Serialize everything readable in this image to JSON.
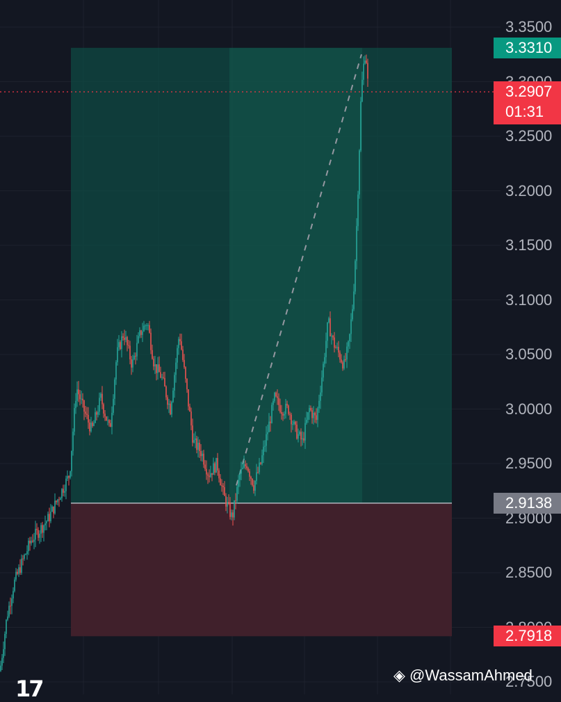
{
  "chart_data": {
    "type": "candlestick",
    "ylim": [
      2.75,
      3.36
    ],
    "y_ticks": [
      "3.3500",
      "3.3000",
      "3.2500",
      "3.2000",
      "3.1500",
      "3.1000",
      "3.0500",
      "3.0000",
      "2.9500",
      "2.9000",
      "2.8500",
      "2.8000",
      "2.7500"
    ],
    "position": {
      "kind": "long",
      "entry": 2.9138,
      "target": 3.331,
      "stop": 2.7918,
      "entry_label": "2.9138",
      "target_label": "3.3310",
      "stop_label": "2.7918"
    },
    "current": {
      "price": 3.2907,
      "price_label": "3.2907",
      "countdown": "01:31"
    },
    "colors": {
      "up": "#26a69a",
      "down": "#ef5350",
      "target_label_bg": "#089981",
      "stop_label_bg": "#f23645",
      "entry_label_bg": "#787b86",
      "profit_zone": "#0f4a43",
      "loss_zone": "#40202b",
      "background": "#131722"
    },
    "price_path": [
      [
        0,
        2.76
      ],
      [
        10,
        2.81
      ],
      [
        20,
        2.84
      ],
      [
        32,
        2.86
      ],
      [
        45,
        2.88
      ],
      [
        58,
        2.89
      ],
      [
        70,
        2.9
      ],
      [
        85,
        2.92
      ],
      [
        100,
        2.94
      ],
      [
        110,
        3.02
      ],
      [
        120,
        3.0
      ],
      [
        132,
        2.98
      ],
      [
        145,
        3.01
      ],
      [
        158,
        2.98
      ],
      [
        168,
        3.05
      ],
      [
        178,
        3.07
      ],
      [
        190,
        3.04
      ],
      [
        202,
        3.07
      ],
      [
        212,
        3.08
      ],
      [
        222,
        3.04
      ],
      [
        232,
        3.03
      ],
      [
        245,
        3.0
      ],
      [
        258,
        3.07
      ],
      [
        268,
        3.02
      ],
      [
        278,
        2.97
      ],
      [
        290,
        2.96
      ],
      [
        300,
        2.94
      ],
      [
        312,
        2.95
      ],
      [
        322,
        2.92
      ],
      [
        334,
        2.9
      ],
      [
        345,
        2.94
      ],
      [
        355,
        2.95
      ],
      [
        365,
        2.93
      ],
      [
        375,
        2.95
      ],
      [
        385,
        2.98
      ],
      [
        395,
        3.01
      ],
      [
        405,
        3.0
      ],
      [
        415,
        3.0
      ],
      [
        425,
        2.98
      ],
      [
        435,
        2.97
      ],
      [
        445,
        3.0
      ],
      [
        455,
        2.99
      ],
      [
        465,
        3.04
      ],
      [
        472,
        3.08
      ],
      [
        480,
        3.06
      ],
      [
        488,
        3.05
      ],
      [
        495,
        3.04
      ],
      [
        502,
        3.06
      ],
      [
        508,
        3.1
      ],
      [
        512,
        3.15
      ],
      [
        516,
        3.22
      ],
      [
        519,
        3.28
      ],
      [
        522,
        3.31
      ],
      [
        526,
        3.33
      ],
      [
        530,
        3.29
      ]
    ]
  },
  "watermark": "@WassamAhmed",
  "logo": "17"
}
